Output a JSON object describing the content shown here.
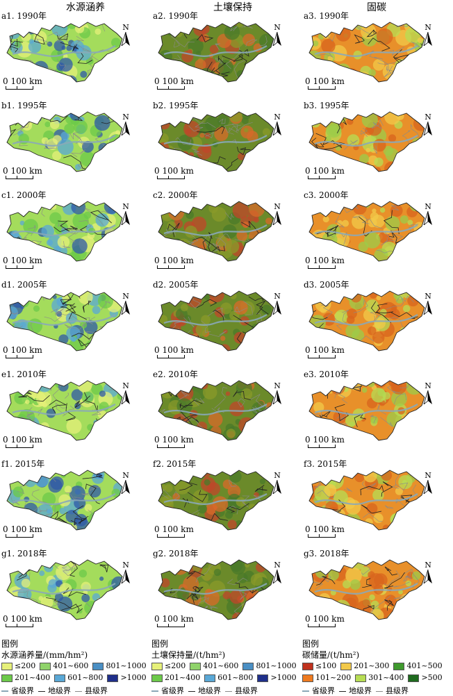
{
  "columns": [
    {
      "title": "水源涵养",
      "scheme": "water"
    },
    {
      "title": "土壤保持",
      "scheme": "soil"
    },
    {
      "title": "固碳",
      "scheme": "carbon"
    }
  ],
  "rows": [
    {
      "labels": [
        "a1. 1990年",
        "a2. 1990年",
        "a3. 1990年"
      ]
    },
    {
      "labels": [
        "b1. 1995年",
        "b2. 1995年",
        "b3. 1995年"
      ]
    },
    {
      "labels": [
        "c1. 2000年",
        "c2. 2000年",
        "c3. 2000年"
      ]
    },
    {
      "labels": [
        "d1. 2005年",
        "d2. 2005年",
        "d3. 2005年"
      ]
    },
    {
      "labels": [
        "e1. 2010年",
        "e2. 2010年",
        "e3. 2010年"
      ]
    },
    {
      "labels": [
        "f1. 2015年",
        "f2. 2015年",
        "f3. 2015年"
      ]
    },
    {
      "labels": [
        "g1. 2018年",
        "g2. 2018年",
        "g3. 2018年"
      ]
    }
  ],
  "map": {
    "north_label": "N",
    "scale_label": "0 100 km"
  },
  "legends": [
    {
      "title": "图例",
      "unit": "水源涵养量/(mm/hm²)",
      "classes": [
        {
          "label": "≤200",
          "color": "#e6f07a"
        },
        {
          "label": "401~600",
          "color": "#8fd36a"
        },
        {
          "label": "801~1000",
          "color": "#4a8fc4"
        },
        {
          "label": "201~400",
          "color": "#6cc94a"
        },
        {
          "label": "601~800",
          "color": "#5aa8d6"
        },
        {
          "label": ">1000",
          "color": "#1f2f8a"
        }
      ]
    },
    {
      "title": "图例",
      "unit": "土壤保持量/(t/hm²)",
      "classes": [
        {
          "label": "≤200",
          "color": "#e6f07a"
        },
        {
          "label": "401~600",
          "color": "#8fd36a"
        },
        {
          "label": "801~1000",
          "color": "#4a8fc4"
        },
        {
          "label": "201~400",
          "color": "#6cc94a"
        },
        {
          "label": "601~800",
          "color": "#5aa8d6"
        },
        {
          "label": ">1000",
          "color": "#1f2f8a"
        }
      ]
    },
    {
      "title": "图例",
      "unit": "碳储量/(t/hm²)",
      "classes": [
        {
          "label": "≤100",
          "color": "#c0321e"
        },
        {
          "label": "201~300",
          "color": "#f2c94a"
        },
        {
          "label": "401~500",
          "color": "#3f9a2e"
        },
        {
          "label": "101~200",
          "color": "#ee7a1f"
        },
        {
          "label": "301~400",
          "color": "#b7dd54"
        },
        {
          "label": ">500",
          "color": "#1f6b1f"
        }
      ]
    }
  ],
  "boundaries": [
    {
      "label": "省级界",
      "color": "#8aa8b8"
    },
    {
      "label": "地级界",
      "color": "#222222"
    },
    {
      "label": "县级界",
      "color": "#8a8a8a"
    }
  ],
  "palettes": {
    "water": {
      "base": "#a4dc5c",
      "spots": [
        "#e6f07a",
        "#6cc94a",
        "#5aa8d6",
        "#2f5aa8"
      ]
    },
    "soil": {
      "base": "#6b8a2a",
      "spots": [
        "#c0462a",
        "#8a9a2a",
        "#4a7a2a",
        "#d86a2a"
      ]
    },
    "carbon": {
      "base": "#e8902a",
      "spots": [
        "#f2c94a",
        "#d8641e",
        "#9ccc4a",
        "#b7dd54"
      ]
    }
  }
}
